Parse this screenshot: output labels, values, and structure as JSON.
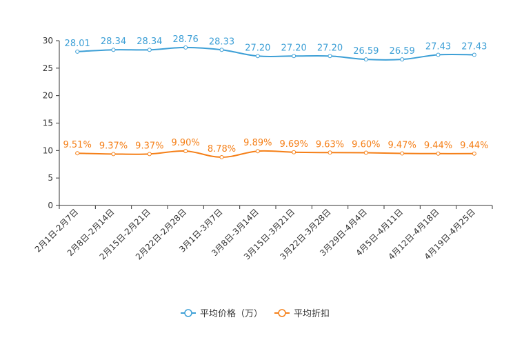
{
  "chart_data": {
    "type": "line",
    "title": "",
    "xlabel": "",
    "ylabel": "",
    "ylim": [
      0,
      30
    ],
    "yticks": [
      0,
      5,
      10,
      15,
      20,
      25,
      30
    ],
    "categories": [
      "2月1日-2月7日",
      "2月8日-2月14日",
      "2月15日-2月21日",
      "2月22日-2月28日",
      "3月1日-3月7日",
      "3月8日-3月14日",
      "3月15日-3月21日",
      "3月22日-3月28日",
      "3月29日-4月4日",
      "4月5日-4月11日",
      "4月12日-4月18日",
      "4月19日-4月25日"
    ],
    "series": [
      {
        "name": "平均价格（万）",
        "color": "#3c9fd6",
        "values": [
          28.01,
          28.34,
          28.34,
          28.76,
          28.33,
          27.2,
          27.2,
          27.2,
          26.59,
          26.59,
          27.43,
          27.43
        ],
        "labels": [
          "28.01",
          "28.34",
          "28.34",
          "28.76",
          "28.33",
          "27.20",
          "27.20",
          "27.20",
          "26.59",
          "26.59",
          "27.43",
          "27.43"
        ]
      },
      {
        "name": "平均折扣",
        "color": "#f57f17",
        "values": [
          9.51,
          9.37,
          9.37,
          9.9,
          8.78,
          9.89,
          9.69,
          9.63,
          9.6,
          9.47,
          9.44,
          9.44
        ],
        "labels": [
          "9.51%",
          "9.37%",
          "9.37%",
          "9.90%",
          "8.78%",
          "9.89%",
          "9.69%",
          "9.63%",
          "9.60%",
          "9.47%",
          "9.44%",
          "9.44%"
        ]
      }
    ],
    "legend_position": "bottom-center",
    "grid": false
  }
}
